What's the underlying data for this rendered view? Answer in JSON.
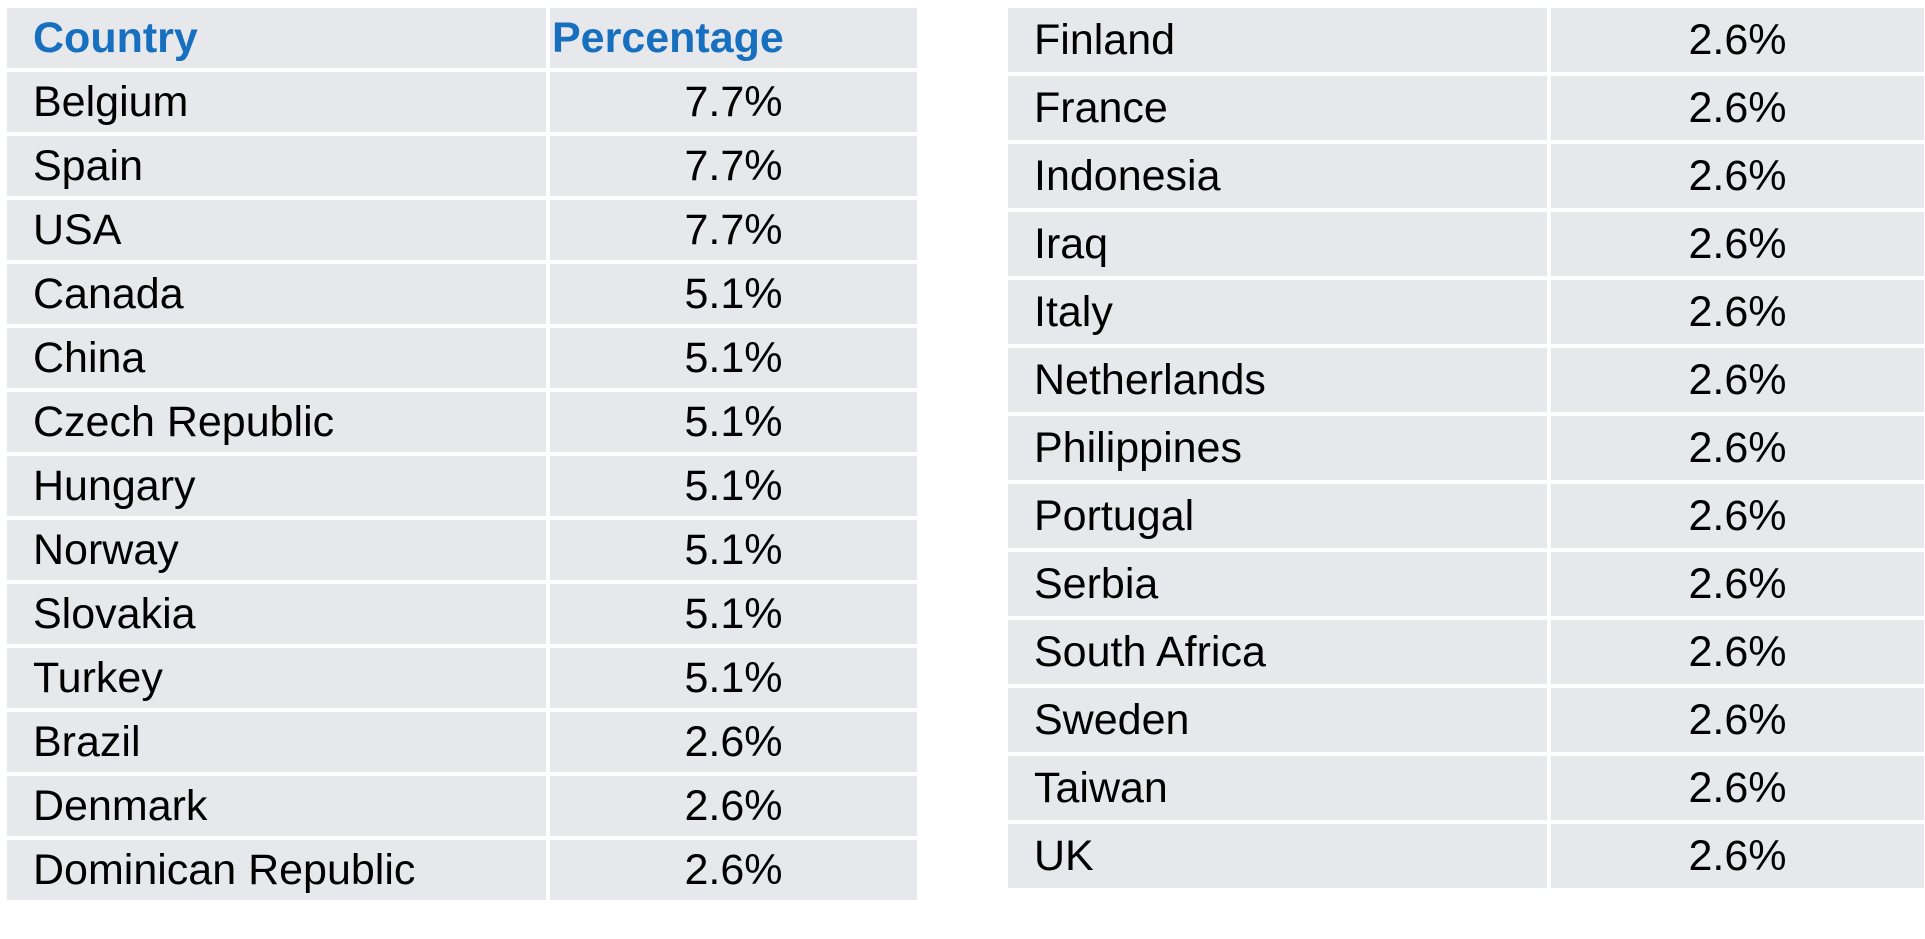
{
  "left_table": {
    "header": [
      "Country",
      "Percentage"
    ],
    "rows": [
      [
        "Belgium",
        "7.7%"
      ],
      [
        "Spain",
        "7.7%"
      ],
      [
        "USA",
        "7.7%"
      ],
      [
        "Canada",
        "5.1%"
      ],
      [
        "China",
        "5.1%"
      ],
      [
        "Czech Republic",
        "5.1%"
      ],
      [
        "Hungary",
        "5.1%"
      ],
      [
        "Norway",
        "5.1%"
      ],
      [
        "Slovakia",
        "5.1%"
      ],
      [
        "Turkey",
        "5.1%"
      ],
      [
        "Brazil",
        "2.6%"
      ],
      [
        "Denmark",
        "2.6%"
      ],
      [
        "Dominican Republic",
        "2.6%"
      ]
    ]
  },
  "right_table": {
    "rows": [
      [
        "Finland",
        "2.6%"
      ],
      [
        "France",
        "2.6%"
      ],
      [
        "Indonesia",
        "2.6%"
      ],
      [
        "Iraq",
        "2.6%"
      ],
      [
        "Italy",
        "2.6%"
      ],
      [
        "Netherlands",
        "2.6%"
      ],
      [
        "Philippines",
        "2.6%"
      ],
      [
        "Portugal",
        "2.6%"
      ],
      [
        "Serbia",
        "2.6%"
      ],
      [
        "South Africa",
        "2.6%"
      ],
      [
        "Sweden",
        "2.6%"
      ],
      [
        "Taiwan",
        "2.6%"
      ],
      [
        "UK",
        "2.6%"
      ]
    ]
  }
}
